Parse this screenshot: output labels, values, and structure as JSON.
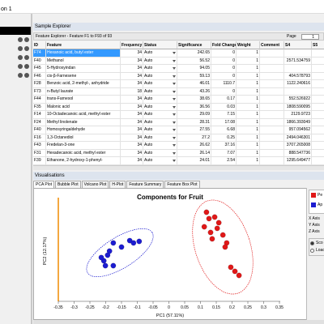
{
  "window": {
    "title": "on 1"
  },
  "sample_explorer": {
    "title": "Sample Explorer"
  },
  "feature_explorer": {
    "title": "Feature Explorer - Feature F1 to F93 of 93",
    "page_label": "Page",
    "page": "1",
    "columns": [
      "ID",
      "Feature",
      "Frequency",
      "Status",
      "Significance",
      "Fold Change",
      "Weight",
      "Comment",
      "S4",
      "S5"
    ],
    "rows": [
      [
        "F74",
        "Hexanoic acid, butyl ester",
        "34",
        "Auto",
        "242.65",
        "0",
        "1",
        "",
        "",
        ""
      ],
      [
        "F40",
        "Methanol",
        "34",
        "Auto",
        "56.52",
        "0",
        "1",
        "",
        "2571.534759",
        "2246"
      ],
      [
        "F45",
        "5-Hydroxyindan",
        "34",
        "Auto",
        "94.05",
        "0",
        "1",
        "",
        "",
        ""
      ],
      [
        "F46",
        "cis-β-Farnesene",
        "34",
        "Auto",
        "59.13",
        "0",
        "1",
        "",
        "404.578793",
        "374"
      ],
      [
        "F28",
        "Benzoic acid, 2-methyl-, anhydride",
        "34",
        "Auto",
        "46.01",
        "1110.7",
        "1",
        "",
        "1122.240616",
        "114"
      ],
      [
        "F73",
        "n-Butyl laurate",
        "18",
        "Auto",
        "43.26",
        "0",
        "1",
        "",
        "",
        ""
      ],
      [
        "F44",
        "trans-Farnesol",
        "34",
        "Auto",
        "38.65",
        "0.17",
        "1",
        "",
        "552.526922",
        "485"
      ],
      [
        "F35",
        "Malonic acid",
        "34",
        "Auto",
        "36.56",
        "0.03",
        "1",
        "",
        "1808.590095",
        "1682"
      ],
      [
        "F14",
        "10-Octadecanoic acid, methyl ester",
        "34",
        "Auto",
        "29.09",
        "7.15",
        "1",
        "",
        "2129.9723",
        "211"
      ],
      [
        "F24",
        "Methyl linolenate",
        "34",
        "Auto",
        "28.31",
        "17.08",
        "1",
        "",
        "1866.393049",
        "1864"
      ],
      [
        "F40",
        "Homosyringaldehyde",
        "34",
        "Auto",
        "27.55",
        "6.68",
        "1",
        "",
        "957.094562",
        "967"
      ],
      [
        "F16",
        "1,3-Octanediol",
        "34",
        "Auto",
        "27.2",
        "0.25",
        "1",
        "",
        "2494.046301",
        "238"
      ],
      [
        "F43",
        "Fredelan-3-one",
        "34",
        "Auto",
        "26.62",
        "37.16",
        "1",
        "",
        "3707.265008",
        "3631"
      ],
      [
        "F31",
        "Hexadecanoic acid, methyl ester",
        "34",
        "Auto",
        "26.14",
        "7.07",
        "1",
        "",
        "888.547736",
        "992"
      ],
      [
        "F39",
        "Ethanone, 2-hydroxy-1-phenyl-",
        "34",
        "Auto",
        "24.01",
        "2.54",
        "1",
        "",
        "1295.649477",
        "1296"
      ]
    ]
  },
  "visualisations": {
    "title": "Visualisations",
    "tabs": [
      "PCA Plot",
      "Bubble Plot",
      "Volcano Plot",
      "H-Plot",
      "Feature Summary",
      "Feature Box Plot"
    ]
  },
  "chart_data": {
    "type": "scatter",
    "title": "Components for Fruit",
    "x_label": "PC1 (57.11%)",
    "y_label": "PC2 (12.17%)",
    "xlim": [
      -0.35,
      0.35
    ],
    "ylim": [
      -0.25,
      0.25
    ],
    "xticks": [
      -0.35,
      -0.3,
      -0.25,
      -0.2,
      -0.15,
      -0.1,
      -0.05,
      0,
      0.05,
      0.1,
      0.15,
      0.2,
      0.25,
      0.3,
      0.35
    ],
    "series": [
      {
        "name": "Pe",
        "color": "#e01818",
        "x": [
          0.119,
          0.127,
          0.145,
          0.112,
          0.153,
          0.171,
          0.137,
          0.183,
          0.196,
          0.209,
          0.222,
          0.178,
          0.158,
          0.132
        ],
        "y": [
          0.2,
          0.167,
          0.175,
          0.125,
          0.117,
          0.083,
          0.063,
          0.042,
          -0.083,
          -0.104,
          -0.125,
          0.021,
          0.146,
          0.096
        ]
      },
      {
        "name": "Ap",
        "color": "#1c1cd0",
        "x": [
          -0.124,
          -0.112,
          -0.15,
          -0.176,
          -0.188,
          -0.206,
          -0.201,
          -0.176,
          -0.194,
          -0.094,
          -0.214
        ],
        "y": [
          0.054,
          0.042,
          0.021,
          0.042,
          0,
          -0.05,
          -0.075,
          -0.075,
          -0.021,
          0.05,
          -0.033
        ]
      }
    ]
  },
  "side_panel": {
    "axes": [
      "X Axis",
      "Y Axis",
      "Z Axis"
    ],
    "options": [
      "Sco",
      "Load"
    ]
  }
}
